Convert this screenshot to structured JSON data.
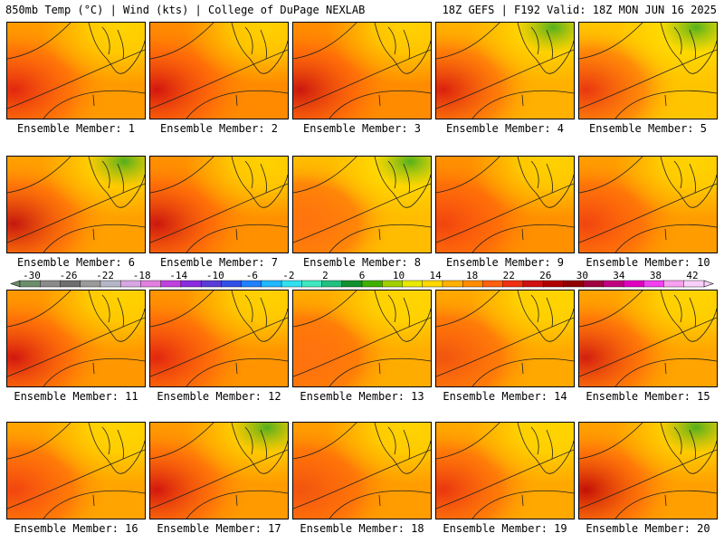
{
  "header": {
    "left": "850mb Temp (°C) | Wind (kts) | College of DuPage NEXLAB",
    "right": "18Z GEFS | F192 Valid: 18Z MON JUN 16 2025"
  },
  "colorbar": {
    "tick_labels": [
      "-30",
      "-26",
      "-22",
      "-18",
      "-14",
      "-10",
      "-6",
      "-2",
      "2",
      "6",
      "10",
      "14",
      "18",
      "22",
      "26",
      "30",
      "34",
      "38",
      "42"
    ],
    "colors": [
      "#6b8e6b",
      "#8a8a8a",
      "#6e6e6e",
      "#9a9a9a",
      "#b5b5c8",
      "#d7a7e3",
      "#e37fe0",
      "#c040e0",
      "#8a2be2",
      "#5a3cd8",
      "#3050e8",
      "#2080ff",
      "#20b8ff",
      "#30e0f0",
      "#40e8c0",
      "#20c080",
      "#109030",
      "#40b000",
      "#a0d000",
      "#e8e800",
      "#ffd800",
      "#ffb000",
      "#ff8c00",
      "#ff6010",
      "#f03010",
      "#d01010",
      "#b00000",
      "#900000",
      "#a00040",
      "#c00080",
      "#e000c0",
      "#f040f0",
      "#f8a0f0",
      "#f8d0f8"
    ]
  },
  "members": [
    {
      "label": "Ensemble Member: 1"
    },
    {
      "label": "Ensemble Member: 2"
    },
    {
      "label": "Ensemble Member: 3"
    },
    {
      "label": "Ensemble Member: 4"
    },
    {
      "label": "Ensemble Member: 5"
    },
    {
      "label": "Ensemble Member: 6"
    },
    {
      "label": "Ensemble Member: 7"
    },
    {
      "label": "Ensemble Member: 8"
    },
    {
      "label": "Ensemble Member: 9"
    },
    {
      "label": "Ensemble Member: 10"
    },
    {
      "label": "Ensemble Member: 11"
    },
    {
      "label": "Ensemble Member: 12"
    },
    {
      "label": "Ensemble Member: 13"
    },
    {
      "label": "Ensemble Member: 14"
    },
    {
      "label": "Ensemble Member: 15"
    },
    {
      "label": "Ensemble Member: 16"
    },
    {
      "label": "Ensemble Member: 17"
    },
    {
      "label": "Ensemble Member: 18"
    },
    {
      "label": "Ensemble Member: 19"
    },
    {
      "label": "Ensemble Member: 20"
    }
  ]
}
